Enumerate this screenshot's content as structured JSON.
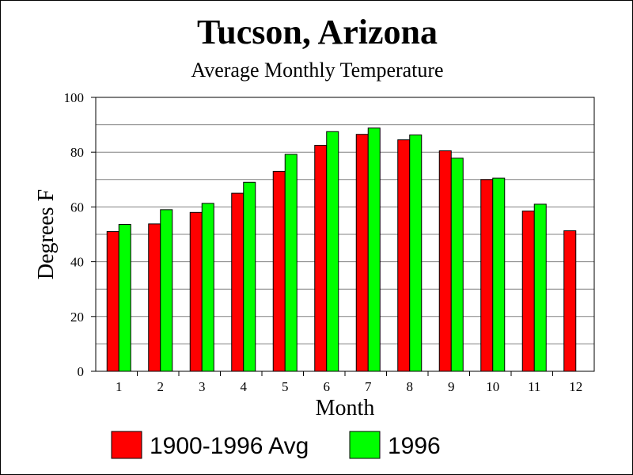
{
  "chart_data": {
    "type": "bar",
    "title": "Tucson, Arizona",
    "subtitle": "Average Monthly Temperature",
    "xlabel": "Month",
    "ylabel": "Degrees F",
    "categories": [
      "1",
      "2",
      "3",
      "4",
      "5",
      "6",
      "7",
      "8",
      "9",
      "10",
      "11",
      "12"
    ],
    "ylim": [
      0,
      100
    ],
    "yticks": [
      0,
      20,
      40,
      60,
      80,
      100
    ],
    "grid": true,
    "legend_position": "bottom",
    "series": [
      {
        "name": "1900-1996 Avg",
        "color": "#ff0000",
        "values": [
          51,
          53.8,
          58,
          65,
          73,
          82.5,
          86.5,
          84.5,
          80.5,
          70,
          58.5,
          51.3
        ]
      },
      {
        "name": "1996",
        "color": "#00ff00",
        "values": [
          53.6,
          59,
          61.3,
          69,
          79.2,
          87.5,
          88.8,
          86.3,
          77.8,
          70.5,
          61,
          null
        ]
      }
    ]
  }
}
